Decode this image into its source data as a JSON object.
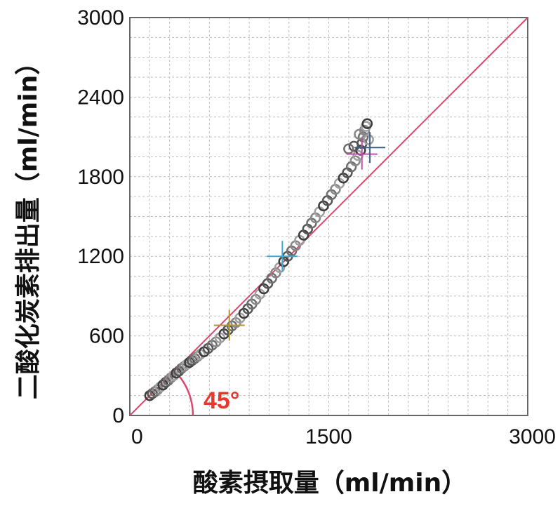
{
  "chart_data": {
    "type": "scatter",
    "xlabel": "酸素摂取量（ml/min）",
    "ylabel": "二酸化炭素排出量（ml/min）",
    "xlim": [
      0,
      3000
    ],
    "ylim": [
      0,
      3000
    ],
    "x_ticks": [
      "0",
      "1500",
      "3000"
    ],
    "y_ticks": [
      "0",
      "600",
      "1200",
      "1800",
      "2400",
      "3000"
    ],
    "grid": true,
    "reference_line": {
      "label": "45°",
      "color": "#e0466a",
      "from": [
        0,
        0
      ],
      "to": [
        3000,
        3000
      ]
    },
    "angle_label": "45°",
    "markers": [
      {
        "x": 750,
        "y": 680,
        "color": "#b8962e"
      },
      {
        "x": 1150,
        "y": 1200,
        "color": "#3fa9d6"
      },
      {
        "x": 1750,
        "y": 1970,
        "color": "#c04fb0"
      },
      {
        "x": 1810,
        "y": 2020,
        "color": "#3b5f86"
      }
    ],
    "series": [
      {
        "points": [
          [
            150,
            150
          ],
          [
            170,
            165
          ],
          [
            190,
            180
          ],
          [
            210,
            195
          ],
          [
            230,
            215
          ],
          [
            250,
            230
          ],
          [
            270,
            250
          ],
          [
            290,
            265
          ],
          [
            310,
            285
          ],
          [
            330,
            300
          ],
          [
            350,
            320
          ],
          [
            370,
            335
          ],
          [
            390,
            355
          ],
          [
            410,
            370
          ],
          [
            430,
            385
          ],
          [
            450,
            400
          ],
          [
            470,
            415
          ],
          [
            490,
            430
          ],
          [
            510,
            445
          ],
          [
            530,
            460
          ],
          [
            560,
            480
          ],
          [
            590,
            505
          ],
          [
            620,
            530
          ],
          [
            650,
            555
          ],
          [
            680,
            585
          ],
          [
            710,
            615
          ],
          [
            740,
            645
          ],
          [
            770,
            675
          ],
          [
            800,
            700
          ],
          [
            830,
            735
          ],
          [
            860,
            770
          ],
          [
            890,
            805
          ],
          [
            920,
            840
          ],
          [
            950,
            875
          ],
          [
            980,
            915
          ],
          [
            1010,
            955
          ],
          [
            1040,
            995
          ],
          [
            1070,
            1035
          ],
          [
            1100,
            1075
          ],
          [
            1130,
            1115
          ],
          [
            1160,
            1160
          ],
          [
            1190,
            1200
          ],
          [
            1220,
            1240
          ],
          [
            1250,
            1280
          ],
          [
            1280,
            1320
          ],
          [
            1310,
            1360
          ],
          [
            1340,
            1405
          ],
          [
            1370,
            1450
          ],
          [
            1400,
            1490
          ],
          [
            1430,
            1535
          ],
          [
            1460,
            1580
          ],
          [
            1490,
            1620
          ],
          [
            1520,
            1665
          ],
          [
            1550,
            1705
          ],
          [
            1580,
            1750
          ],
          [
            1610,
            1790
          ],
          [
            1640,
            1830
          ],
          [
            1670,
            1875
          ],
          [
            1700,
            1920
          ],
          [
            1720,
            1960
          ],
          [
            1740,
            2000
          ],
          [
            1750,
            2050
          ],
          [
            1760,
            2100
          ],
          [
            1770,
            2150
          ],
          [
            1780,
            2180
          ],
          [
            1790,
            2200
          ],
          [
            1690,
            2030
          ],
          [
            1650,
            2010
          ],
          [
            1730,
            2120
          ],
          [
            1800,
            2080
          ]
        ]
      }
    ]
  }
}
